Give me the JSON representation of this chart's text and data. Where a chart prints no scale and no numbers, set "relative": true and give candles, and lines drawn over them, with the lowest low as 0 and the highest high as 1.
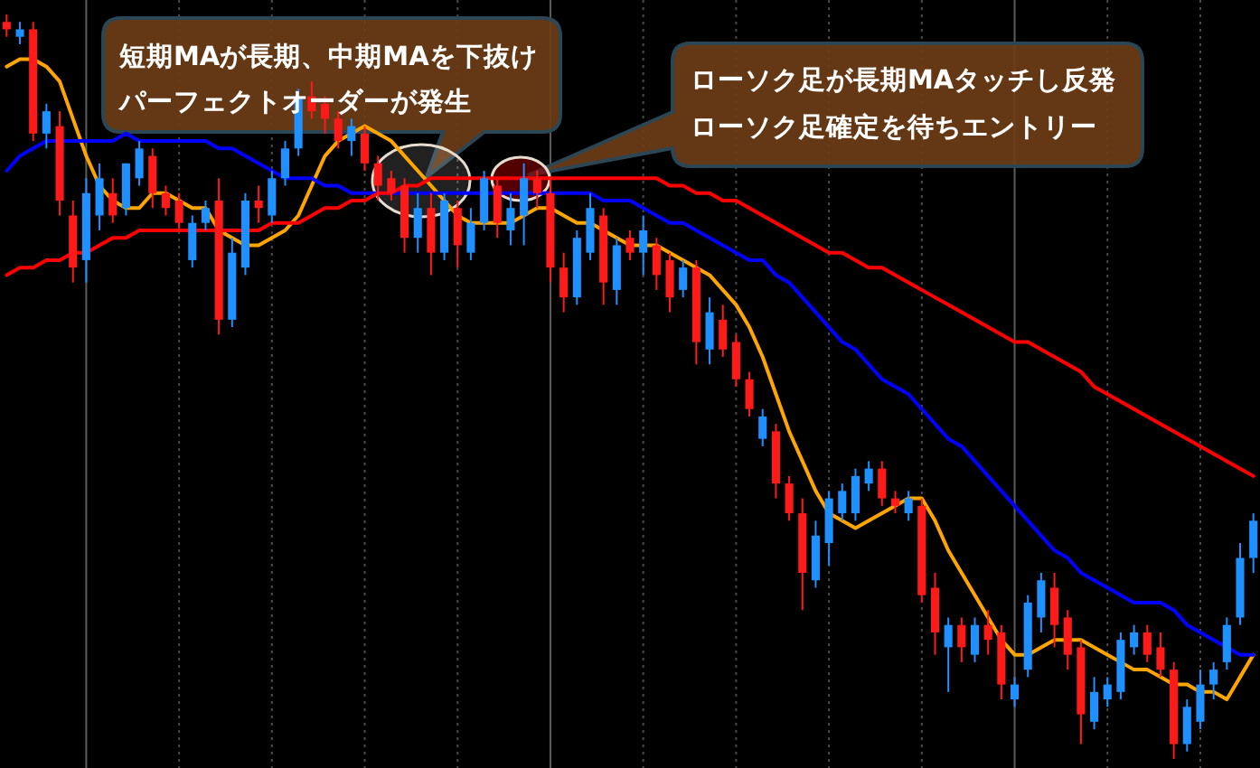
{
  "chart_data": {
    "type": "candlestick",
    "relative": true,
    "grid": "x",
    "categories": [
      null,
      null,
      null,
      null,
      null,
      null,
      null,
      null,
      null,
      null,
      null,
      null,
      null,
      null,
      null,
      null,
      null,
      null,
      null,
      null,
      null,
      null,
      null,
      null,
      null,
      null,
      null,
      null,
      null,
      null,
      null,
      null,
      null,
      null,
      null,
      null,
      null,
      null,
      null,
      null,
      null,
      null,
      null,
      null,
      null,
      null,
      null,
      null,
      null,
      null,
      null,
      null,
      null,
      null,
      null,
      null,
      null,
      null,
      null,
      null,
      null,
      null,
      null,
      null,
      null,
      null,
      null,
      null,
      null,
      null,
      null,
      null,
      null,
      null,
      null,
      null,
      null,
      null,
      null,
      null,
      null,
      null,
      null,
      null,
      null,
      null,
      null,
      null,
      null,
      null,
      null,
      null,
      null,
      null,
      null
    ],
    "ohlc": [
      [
        0.99,
        1.0,
        0.97,
        0.98
      ],
      [
        0.97,
        0.99,
        0.96,
        0.98
      ],
      [
        0.98,
        0.99,
        0.83,
        0.84
      ],
      [
        0.84,
        0.88,
        0.82,
        0.87
      ],
      [
        0.85,
        0.87,
        0.73,
        0.75
      ],
      [
        0.73,
        0.75,
        0.64,
        0.66
      ],
      [
        0.67,
        0.78,
        0.64,
        0.76
      ],
      [
        0.73,
        0.8,
        0.71,
        0.78
      ],
      [
        0.76,
        0.78,
        0.72,
        0.73
      ],
      [
        0.74,
        0.8,
        0.73,
        0.8
      ],
      [
        0.78,
        0.83,
        0.77,
        0.82
      ],
      [
        0.81,
        0.82,
        0.74,
        0.76
      ],
      [
        0.76,
        0.77,
        0.73,
        0.74
      ],
      [
        0.75,
        0.76,
        0.71,
        0.72
      ],
      [
        0.67,
        0.73,
        0.66,
        0.72
      ],
      [
        0.72,
        0.75,
        0.71,
        0.74
      ],
      [
        0.75,
        0.78,
        0.57,
        0.59
      ],
      [
        0.59,
        0.7,
        0.58,
        0.68
      ],
      [
        0.66,
        0.76,
        0.65,
        0.75
      ],
      [
        0.75,
        0.77,
        0.72,
        0.74
      ],
      [
        0.73,
        0.79,
        0.72,
        0.78
      ],
      [
        0.78,
        0.83,
        0.77,
        0.82
      ],
      [
        0.82,
        0.9,
        0.81,
        0.89
      ],
      [
        0.89,
        0.91,
        0.86,
        0.87
      ],
      [
        0.88,
        0.89,
        0.84,
        0.86
      ],
      [
        0.86,
        0.87,
        0.82,
        0.83
      ],
      [
        0.83,
        0.86,
        0.81,
        0.85
      ],
      [
        0.84,
        0.85,
        0.79,
        0.8
      ],
      [
        0.8,
        0.81,
        0.75,
        0.77
      ],
      [
        0.78,
        0.79,
        0.75,
        0.76
      ],
      [
        0.77,
        0.78,
        0.68,
        0.7
      ],
      [
        0.7,
        0.76,
        0.68,
        0.74
      ],
      [
        0.74,
        0.76,
        0.65,
        0.68
      ],
      [
        0.68,
        0.76,
        0.67,
        0.75
      ],
      [
        0.74,
        0.75,
        0.66,
        0.69
      ],
      [
        0.68,
        0.74,
        0.67,
        0.72
      ],
      [
        0.72,
        0.79,
        0.71,
        0.78
      ],
      [
        0.77,
        0.78,
        0.7,
        0.72
      ],
      [
        0.71,
        0.76,
        0.69,
        0.74
      ],
      [
        0.73,
        0.8,
        0.69,
        0.78
      ],
      [
        0.78,
        0.79,
        0.74,
        0.76
      ],
      [
        0.76,
        0.78,
        0.64,
        0.66
      ],
      [
        0.66,
        0.68,
        0.6,
        0.62
      ],
      [
        0.62,
        0.71,
        0.61,
        0.7
      ],
      [
        0.68,
        0.76,
        0.67,
        0.74
      ],
      [
        0.73,
        0.74,
        0.61,
        0.64
      ],
      [
        0.63,
        0.7,
        0.61,
        0.69
      ],
      [
        0.7,
        0.71,
        0.67,
        0.68
      ],
      [
        0.68,
        0.73,
        0.65,
        0.71
      ],
      [
        0.69,
        0.7,
        0.63,
        0.65
      ],
      [
        0.67,
        0.68,
        0.6,
        0.62
      ],
      [
        0.63,
        0.67,
        0.62,
        0.66
      ],
      [
        0.66,
        0.67,
        0.53,
        0.56
      ],
      [
        0.55,
        0.62,
        0.53,
        0.6
      ],
      [
        0.59,
        0.61,
        0.54,
        0.55
      ],
      [
        0.56,
        0.57,
        0.5,
        0.51
      ],
      [
        0.51,
        0.52,
        0.46,
        0.47
      ],
      [
        0.43,
        0.47,
        0.42,
        0.46
      ],
      [
        0.44,
        0.45,
        0.35,
        0.37
      ],
      [
        0.37,
        0.38,
        0.32,
        0.33
      ],
      [
        0.33,
        0.35,
        0.2,
        0.25
      ],
      [
        0.24,
        0.32,
        0.23,
        0.3
      ],
      [
        0.29,
        0.36,
        0.26,
        0.35
      ],
      [
        0.33,
        0.37,
        0.32,
        0.36
      ],
      [
        0.33,
        0.39,
        0.32,
        0.38
      ],
      [
        0.37,
        0.4,
        0.36,
        0.39
      ],
      [
        0.39,
        0.4,
        0.34,
        0.35
      ],
      [
        0.35,
        0.36,
        0.33,
        0.34
      ],
      [
        0.33,
        0.36,
        0.32,
        0.35
      ],
      [
        0.34,
        0.35,
        0.21,
        0.22
      ],
      [
        0.23,
        0.25,
        0.14,
        0.17
      ],
      [
        0.15,
        0.19,
        0.09,
        0.18
      ],
      [
        0.18,
        0.19,
        0.13,
        0.15
      ],
      [
        0.14,
        0.19,
        0.13,
        0.18
      ],
      [
        0.18,
        0.2,
        0.14,
        0.16
      ],
      [
        0.17,
        0.18,
        0.08,
        0.1
      ],
      [
        0.08,
        0.11,
        0.07,
        0.1
      ],
      [
        0.12,
        0.22,
        0.11,
        0.21
      ],
      [
        0.19,
        0.25,
        0.17,
        0.24
      ],
      [
        0.23,
        0.25,
        0.15,
        0.18
      ],
      [
        0.19,
        0.2,
        0.12,
        0.14
      ],
      [
        0.15,
        0.16,
        0.02,
        0.06
      ],
      [
        0.05,
        0.11,
        0.04,
        0.09
      ],
      [
        0.08,
        0.11,
        0.07,
        0.1
      ],
      [
        0.09,
        0.17,
        0.08,
        0.16
      ],
      [
        0.15,
        0.18,
        0.14,
        0.17
      ],
      [
        0.17,
        0.18,
        0.13,
        0.14
      ],
      [
        0.15,
        0.17,
        0.11,
        0.12
      ],
      [
        0.12,
        0.13,
        0.0,
        0.02
      ],
      [
        0.02,
        0.08,
        0.01,
        0.07
      ],
      [
        0.05,
        0.12,
        0.04,
        0.1
      ],
      [
        0.1,
        0.13,
        0.08,
        0.12
      ],
      [
        0.13,
        0.19,
        0.12,
        0.18
      ],
      [
        0.19,
        0.29,
        0.18,
        0.27
      ],
      [
        0.27,
        0.33,
        0.25,
        0.32
      ]
    ],
    "colors": [
      "#ff1a1a",
      "#1e90ff",
      "#ff1a1a",
      "#1e90ff",
      "#ff1a1a",
      "#ff1a1a",
      "#1e90ff",
      "#1e90ff",
      "#ff1a1a",
      "#1e90ff",
      "#1e90ff",
      "#ff1a1a",
      "#ff1a1a",
      "#ff1a1a",
      "#1e90ff",
      "#1e90ff",
      "#ff1a1a",
      "#1e90ff",
      "#1e90ff",
      "#ff1a1a",
      "#1e90ff",
      "#1e90ff",
      "#1e90ff",
      "#ff1a1a",
      "#ff1a1a",
      "#ff1a1a",
      "#1e90ff",
      "#ff1a1a",
      "#ff1a1a",
      "#ff1a1a",
      "#ff1a1a",
      "#1e90ff",
      "#ff1a1a",
      "#1e90ff",
      "#ff1a1a",
      "#1e90ff",
      "#1e90ff",
      "#ff1a1a",
      "#1e90ff",
      "#1e90ff",
      "#ff1a1a",
      "#ff1a1a",
      "#ff1a1a",
      "#1e90ff",
      "#1e90ff",
      "#ff1a1a",
      "#1e90ff",
      "#ff1a1a",
      "#1e90ff",
      "#ff1a1a",
      "#ff1a1a",
      "#1e90ff",
      "#ff1a1a",
      "#1e90ff",
      "#ff1a1a",
      "#ff1a1a",
      "#ff1a1a",
      "#1e90ff",
      "#ff1a1a",
      "#ff1a1a",
      "#ff1a1a",
      "#1e90ff",
      "#1e90ff",
      "#1e90ff",
      "#1e90ff",
      "#1e90ff",
      "#ff1a1a",
      "#ff1a1a",
      "#1e90ff",
      "#ff1a1a",
      "#ff1a1a",
      "#1e90ff",
      "#ff1a1a",
      "#1e90ff",
      "#ff1a1a",
      "#ff1a1a",
      "#1e90ff",
      "#1e90ff",
      "#1e90ff",
      "#ff1a1a",
      "#ff1a1a",
      "#ff1a1a",
      "#1e90ff",
      "#1e90ff",
      "#1e90ff",
      "#1e90ff",
      "#ff1a1a",
      "#ff1a1a",
      "#ff1a1a",
      "#1e90ff",
      "#1e90ff",
      "#1e90ff",
      "#1e90ff",
      "#1e90ff",
      "#1e90ff"
    ],
    "series": [
      {
        "type": "line",
        "color": "#ffa500",
        "values": [
          0.93,
          0.94,
          0.94,
          0.93,
          0.91,
          0.86,
          0.81,
          0.77,
          0.75,
          0.74,
          0.74,
          0.76,
          0.76,
          0.75,
          0.74,
          0.74,
          0.71,
          0.7,
          0.69,
          0.69,
          0.7,
          0.71,
          0.73,
          0.77,
          0.81,
          0.83,
          0.84,
          0.85,
          0.84,
          0.83,
          0.81,
          0.79,
          0.77,
          0.75,
          0.73,
          0.72,
          0.72,
          0.72,
          0.72,
          0.73,
          0.74,
          0.74,
          0.73,
          0.72,
          0.72,
          0.71,
          0.7,
          0.69,
          0.69,
          0.69,
          0.68,
          0.67,
          0.66,
          0.65,
          0.63,
          0.61,
          0.58,
          0.54,
          0.49,
          0.44,
          0.4,
          0.36,
          0.33,
          0.32,
          0.31,
          0.32,
          0.33,
          0.34,
          0.35,
          0.35,
          0.32,
          0.28,
          0.25,
          0.22,
          0.19,
          0.16,
          0.14,
          0.14,
          0.15,
          0.16,
          0.16,
          0.16,
          0.15,
          0.14,
          0.13,
          0.12,
          0.12,
          0.11,
          0.1,
          0.1,
          0.09,
          0.09,
          0.08,
          0.11,
          0.14
        ]
      },
      {
        "type": "line",
        "color": "#0000ff",
        "values": [
          0.79,
          0.81,
          0.82,
          0.83,
          0.83,
          0.83,
          0.83,
          0.83,
          0.83,
          0.84,
          0.83,
          0.83,
          0.83,
          0.83,
          0.83,
          0.83,
          0.82,
          0.82,
          0.81,
          0.8,
          0.79,
          0.78,
          0.78,
          0.78,
          0.77,
          0.77,
          0.76,
          0.76,
          0.76,
          0.76,
          0.76,
          0.76,
          0.76,
          0.76,
          0.76,
          0.76,
          0.76,
          0.76,
          0.76,
          0.76,
          0.76,
          0.76,
          0.76,
          0.76,
          0.76,
          0.75,
          0.75,
          0.75,
          0.74,
          0.73,
          0.72,
          0.72,
          0.71,
          0.7,
          0.69,
          0.68,
          0.67,
          0.67,
          0.65,
          0.64,
          0.62,
          0.6,
          0.58,
          0.56,
          0.55,
          0.53,
          0.51,
          0.5,
          0.49,
          0.47,
          0.45,
          0.43,
          0.42,
          0.4,
          0.38,
          0.36,
          0.34,
          0.32,
          0.3,
          0.28,
          0.27,
          0.25,
          0.24,
          0.23,
          0.22,
          0.21,
          0.21,
          0.21,
          0.2,
          0.18,
          0.17,
          0.16,
          0.15,
          0.14,
          0.14
        ]
      },
      {
        "type": "line",
        "color": "#ff0000",
        "values": [
          0.65,
          0.66,
          0.66,
          0.67,
          0.67,
          0.68,
          0.68,
          0.69,
          0.7,
          0.7,
          0.71,
          0.71,
          0.71,
          0.71,
          0.71,
          0.71,
          0.71,
          0.71,
          0.71,
          0.71,
          0.72,
          0.72,
          0.72,
          0.73,
          0.74,
          0.74,
          0.75,
          0.75,
          0.76,
          0.76,
          0.77,
          0.77,
          0.78,
          0.78,
          0.78,
          0.78,
          0.78,
          0.78,
          0.78,
          0.78,
          0.78,
          0.78,
          0.78,
          0.78,
          0.78,
          0.78,
          0.78,
          0.78,
          0.78,
          0.78,
          0.77,
          0.77,
          0.76,
          0.76,
          0.75,
          0.75,
          0.74,
          0.73,
          0.72,
          0.71,
          0.7,
          0.69,
          0.68,
          0.68,
          0.67,
          0.66,
          0.66,
          0.65,
          0.64,
          0.63,
          0.62,
          0.61,
          0.6,
          0.59,
          0.58,
          0.57,
          0.56,
          0.56,
          0.55,
          0.54,
          0.53,
          0.52,
          0.5,
          0.49,
          0.48,
          0.47,
          0.46,
          0.45,
          0.44,
          0.43,
          0.42,
          0.41,
          0.4,
          0.39,
          0.38
        ]
      }
    ],
    "annotations": [
      "短期MAが長期、中期MAを下抜け",
      "パーフェクトオーダーが発生",
      "ローソク足が長期MAタッチし反発",
      "ローソク足確定を待ちエントリー"
    ]
  }
}
